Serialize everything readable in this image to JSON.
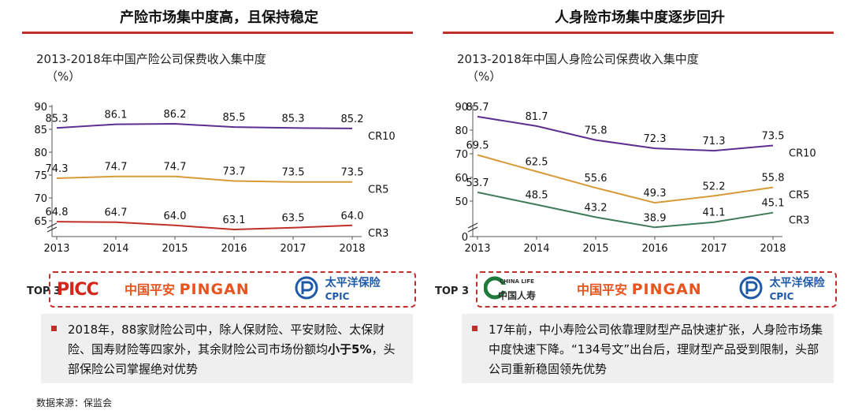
{
  "colors": {
    "accent": "#c0302a",
    "cr10": "#5b2e8f",
    "cr5": "#d79a38",
    "cr3_left": "#c0302a",
    "cr3_right": "#3f7a5a"
  },
  "left": {
    "title": "产险市场集中度高，且保持稳定",
    "chart_title": "2013-2018年中国产险公司保费收入集中度",
    "unit": "（%）",
    "top3_label": "TOP 3",
    "logos": {
      "picc": "PICC",
      "pingan_cn": "中国平安",
      "pingan_en": "PINGAN",
      "cpic_cn": "太平洋保险",
      "cpic_en": "CPIC"
    },
    "note_parts": [
      "2018年，88家财险公司中，除人保财险、平安财险、太保财险、国寿财险等四家外，其余财险公司市场份额均",
      "小于5%",
      "，头部保险公司掌握绝对优势"
    ]
  },
  "right": {
    "title": "人身险市场集中度逐步回升",
    "chart_title": "2013-2018年中国人身险公司保费收入集中度",
    "unit": "（%）",
    "top3_label": "TOP 3",
    "logos": {
      "chinalife_en": "CHINA LIFE",
      "chinalife_cn": "中国人寿",
      "pingan_cn": "中国平安",
      "pingan_en": "PINGAN",
      "cpic_cn": "太平洋保险",
      "cpic_en": "CPIC"
    },
    "note": "17年前，中小寿险公司依靠理财型产品快速扩张，人身险市场集中度快速下降。“134号文”出台后，理财型产品受到限制，头部公司重新稳固领先优势"
  },
  "source": "数据来源：保监会",
  "chart_data": [
    {
      "type": "line",
      "title": "2013-2018年中国产险公司保费收入集中度",
      "ylabel": "（%）",
      "categories": [
        "2013",
        "2014",
        "2015",
        "2016",
        "2017",
        "2018"
      ],
      "yticks": [
        65,
        70,
        75,
        80,
        85,
        90
      ],
      "ylim": [
        60,
        90
      ],
      "axis_break": true,
      "series": [
        {
          "name": "CR10",
          "values": [
            85.3,
            86.1,
            86.2,
            85.5,
            85.3,
            85.2
          ],
          "color": "#5b2e8f"
        },
        {
          "name": "CR5",
          "values": [
            74.3,
            74.7,
            74.7,
            73.7,
            73.5,
            73.5
          ],
          "color": "#d79a38"
        },
        {
          "name": "CR3",
          "values": [
            64.8,
            64.7,
            64.0,
            63.1,
            63.5,
            64.0
          ],
          "color": "#c0302a"
        }
      ]
    },
    {
      "type": "line",
      "title": "2013-2018年中国人身险公司保费收入集中度",
      "ylabel": "（%）",
      "categories": [
        "2013",
        "2014",
        "2015",
        "2016",
        "2017",
        "2018"
      ],
      "yticks": [
        0,
        50,
        60,
        70,
        80,
        90
      ],
      "ylim": [
        0,
        90
      ],
      "axis_break": true,
      "series": [
        {
          "name": "CR10",
          "values": [
            85.7,
            81.7,
            75.8,
            72.3,
            71.3,
            73.5
          ],
          "color": "#5b2e8f"
        },
        {
          "name": "CR5",
          "values": [
            69.5,
            62.5,
            55.6,
            49.3,
            52.2,
            55.8
          ],
          "color": "#d79a38"
        },
        {
          "name": "CR3",
          "values": [
            53.7,
            48.5,
            43.2,
            38.9,
            41.1,
            45.1
          ],
          "color": "#3f7a5a"
        }
      ]
    }
  ]
}
